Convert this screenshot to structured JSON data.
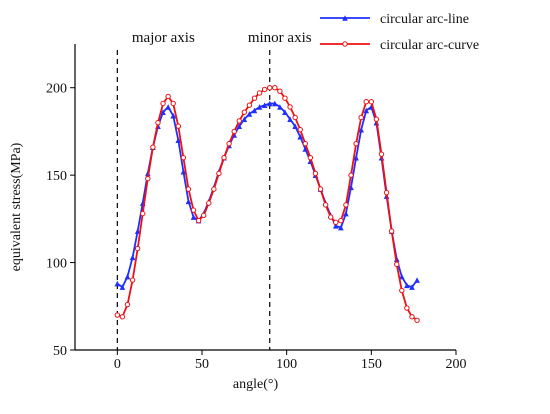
{
  "chart_data": {
    "type": "line",
    "xlabel": "angle(°)",
    "ylabel": "equivalent stress(MPa)",
    "xlim": [
      -25,
      200
    ],
    "ylim": [
      50,
      225
    ],
    "xticks": [
      0,
      50,
      100,
      150,
      200
    ],
    "yticks": [
      50,
      100,
      150,
      200
    ],
    "grid": false,
    "legend_position": "top-right",
    "annotations": [
      {
        "text": "major axis",
        "x": 0
      },
      {
        "text": "minor axis",
        "x": 90
      }
    ],
    "series": [
      {
        "name": "circular arc-line",
        "color": "#1f2fff",
        "marker": "triangle",
        "x": [
          0,
          3,
          6,
          9,
          12,
          15,
          18,
          21,
          24,
          27,
          30,
          33,
          36,
          39,
          42,
          45,
          48,
          51,
          54,
          57,
          60,
          63,
          66,
          69,
          72,
          75,
          78,
          81,
          84,
          87,
          90,
          93,
          96,
          99,
          102,
          105,
          108,
          111,
          114,
          117,
          120,
          123,
          126,
          129,
          132,
          135,
          138,
          141,
          144,
          147,
          150,
          153,
          156,
          159,
          162,
          165,
          168,
          171,
          174,
          177
        ],
        "y": [
          88,
          86,
          92,
          103,
          118,
          134,
          151,
          166,
          178,
          186,
          189,
          184,
          170,
          152,
          135,
          126,
          124,
          128,
          135,
          143,
          152,
          160,
          167,
          173,
          178,
          182,
          185,
          187,
          189,
          190,
          191,
          191,
          189,
          186,
          182,
          178,
          172,
          165,
          158,
          150,
          142,
          134,
          127,
          121,
          120,
          128,
          143,
          160,
          176,
          187,
          189,
          180,
          160,
          138,
          118,
          102,
          92,
          87,
          86,
          90
        ]
      },
      {
        "name": "circular arc-curve",
        "color": "#ee1111",
        "marker": "circle",
        "x": [
          0,
          3,
          6,
          9,
          12,
          15,
          18,
          21,
          24,
          27,
          30,
          33,
          36,
          39,
          42,
          45,
          48,
          51,
          54,
          57,
          60,
          63,
          66,
          69,
          72,
          75,
          78,
          81,
          84,
          87,
          90,
          93,
          96,
          99,
          102,
          105,
          108,
          111,
          114,
          117,
          120,
          123,
          126,
          129,
          132,
          135,
          138,
          141,
          144,
          147,
          150,
          153,
          156,
          159,
          162,
          165,
          168,
          171,
          174,
          177
        ],
        "y": [
          70,
          69,
          76,
          90,
          108,
          128,
          148,
          166,
          180,
          191,
          195,
          191,
          178,
          160,
          142,
          130,
          124,
          127,
          134,
          142,
          151,
          160,
          168,
          175,
          181,
          186,
          190,
          194,
          197,
          199,
          200,
          200,
          198,
          194,
          189,
          183,
          176,
          168,
          160,
          151,
          142,
          133,
          126,
          123,
          124,
          133,
          150,
          168,
          183,
          192,
          192,
          182,
          162,
          140,
          118,
          99,
          84,
          74,
          69,
          67
        ]
      }
    ]
  }
}
